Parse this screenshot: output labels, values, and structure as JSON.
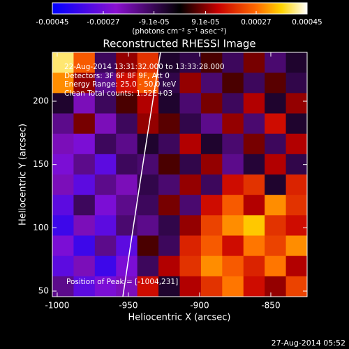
{
  "chart_data": {
    "type": "heatmap",
    "title": "Reconstructed RHESSI Image",
    "xlabel": "Heliocentric X (arcsec)",
    "ylabel": "Heliocentric Y (arcsec)",
    "xlim": [
      -1003.4,
      -824.5
    ],
    "ylim": [
      45.6,
      238.6
    ],
    "xticks": [
      -1000,
      -950,
      -900,
      -850
    ],
    "yticks": [
      50,
      100,
      150,
      200
    ],
    "colorbar": {
      "label": "(photons cm⁻² s⁻¹ asec⁻²)",
      "lim": [
        -0.00045,
        0.00045
      ],
      "ticks": [
        -0.00045,
        -0.00027,
        {
          "value": -9.1e-05,
          "label": "-9.1e-05"
        },
        {
          "value": 9.1e-05,
          "label": "9.1e-05"
        },
        0.00027,
        0.00045
      ],
      "colormap": [
        {
          "stop": 0,
          "color": "#0000ff"
        },
        {
          "stop": 0.25,
          "color": "#8a10d0"
        },
        {
          "stop": 0.5,
          "color": "#000000"
        },
        {
          "stop": 0.65,
          "color": "#c80000"
        },
        {
          "stop": 0.8,
          "color": "#ff6a00"
        },
        {
          "stop": 0.9,
          "color": "#ffd400"
        },
        {
          "stop": 1,
          "color": "#ffffff"
        }
      ]
    },
    "z": [
      [
        0.0004,
        0.00025,
        -0.0001,
        0.0001,
        0.0002,
        -5e-05,
        -8e-05,
        5e-05,
        -0.0001,
        8e-05,
        -0.00012,
        -5e-05
      ],
      [
        0.0003,
        0.0001,
        -0.00015,
        0.00015,
        0.00025,
        -8e-05,
        0.0001,
        -0.00012,
        5e-05,
        -0.0001,
        6e-05,
        -8e-05
      ],
      [
        -5e-05,
        -0.0002,
        -0.0001,
        5e-05,
        0.00012,
        -5e-05,
        -0.00012,
        8e-05,
        -0.0001,
        0.00012,
        -5e-05,
        0.0001
      ],
      [
        -0.00015,
        8e-05,
        -0.0002,
        -0.0001,
        0.0001,
        6e-05,
        -8e-05,
        -0.00015,
        0.0001,
        -0.00012,
        0.00015,
        -5e-05
      ],
      [
        -0.0002,
        -0.00025,
        -0.0001,
        -0.00015,
        -5e-05,
        -0.0001,
        0.00012,
        -5e-05,
        -0.00012,
        8e-05,
        -0.0001,
        0.00012
      ],
      [
        -0.00025,
        -0.00015,
        -0.0003,
        -0.0001,
        -0.00012,
        5e-05,
        -8e-05,
        0.0001,
        -0.00015,
        -6e-05,
        0.00012,
        -8e-05
      ],
      [
        -0.0002,
        -0.0003,
        -0.00015,
        -0.0002,
        -8e-05,
        -0.00012,
        0.0001,
        -0.0001,
        0.00015,
        0.0002,
        -5e-05,
        0.00018
      ],
      [
        -0.0003,
        -0.0001,
        -0.00025,
        -0.00015,
        -0.0001,
        8e-05,
        -0.00012,
        0.00015,
        0.00025,
        0.00012,
        0.0003,
        0.0002
      ],
      [
        -0.00035,
        -0.0002,
        -0.0003,
        -0.00012,
        -0.00015,
        -8e-05,
        0.0001,
        0.00022,
        0.0003,
        0.00035,
        0.0002,
        0.00015
      ],
      [
        -0.00025,
        -0.00035,
        -0.00015,
        -0.0003,
        5e-05,
        -0.0001,
        0.00018,
        0.00025,
        0.00015,
        0.00028,
        0.00022,
        0.0003
      ],
      [
        -0.0003,
        -0.0002,
        -0.00035,
        -0.00025,
        -0.0001,
        0.00012,
        0.0002,
        0.0003,
        0.00025,
        0.00018,
        0.00028,
        0.00012
      ],
      [
        -0.00015,
        -0.0003,
        -0.00025,
        -0.0002,
        0.00015,
        -5e-05,
        0.00012,
        0.0002,
        0.00028,
        0.00015,
        0.0001,
        0.00022
      ]
    ],
    "annotations": [
      "22-Aug-2014 13:31:32.000 to 13:33:28.000",
      "Detectors: 3F 6F 8F 9F, Att 0",
      "Energy Range: 25.0 - 50.0 keV",
      "Clean     Total counts: 1.52E+03",
      "Position of Peak = [-1004,231]"
    ],
    "footer": "27-Aug-2014 05:52"
  }
}
